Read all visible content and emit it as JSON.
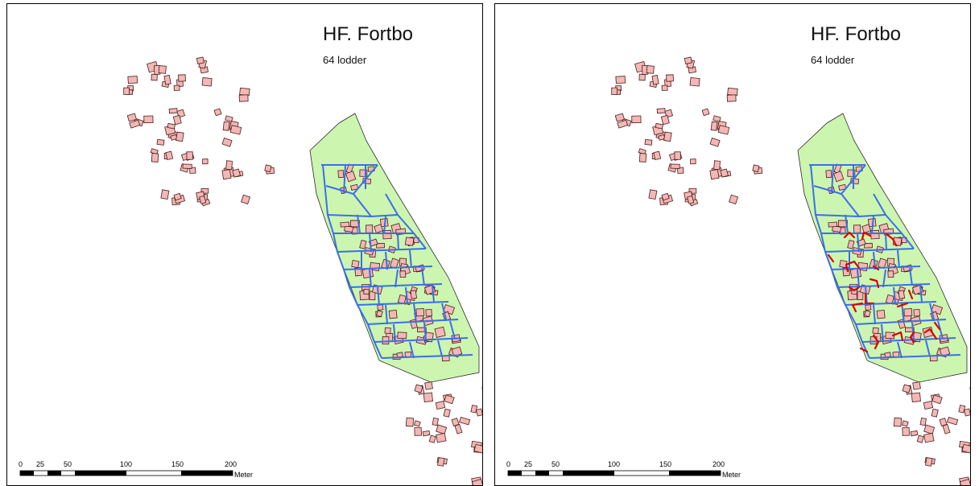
{
  "maps": [
    {
      "title": "HF. Fortbo",
      "subtitle": "64 lodder",
      "highlighted_changes": false
    },
    {
      "title": "HF. Fortbo",
      "subtitle": "64 lodder",
      "highlighted_changes": true
    }
  ],
  "scalebar": {
    "ticks": [
      "0",
      "25",
      "50",
      "100",
      "150",
      "200"
    ],
    "unit": "Meter"
  },
  "colors": {
    "lot_area": "#ccf5b0",
    "building": "#f2b8b5",
    "building_outline": "#4a1b1b",
    "lot_boundary": "#3a6fe8",
    "changes": "#dd0000"
  }
}
